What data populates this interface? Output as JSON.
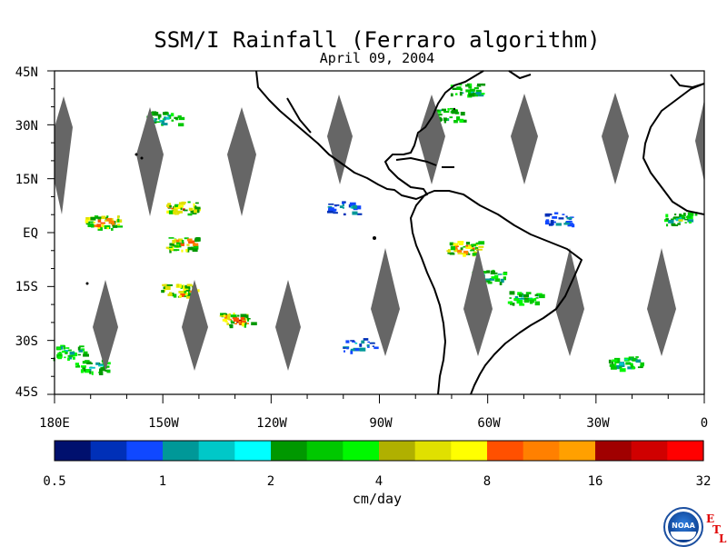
{
  "title": "SSM/I Rainfall (Ferraro algorithm)",
  "subtitle": "April 09, 2004",
  "map": {
    "lat_labels": [
      "45N",
      "30N",
      "15N",
      "EQ",
      "15S",
      "30S",
      "45S"
    ],
    "lat_values": [
      45,
      30,
      15,
      0,
      -15,
      -30,
      -45
    ],
    "lon_labels": [
      "180E",
      "150W",
      "120W",
      "90W",
      "60W",
      "30W",
      "0"
    ],
    "lon_values": [
      -180,
      -150,
      -120,
      -90,
      -60,
      -30,
      0
    ],
    "lon_range": [
      -180,
      0
    ],
    "lat_range": [
      -45,
      45
    ],
    "no_data_color": "#666666",
    "rain_blobs": [
      {
        "lon": -150,
        "lat": 32,
        "intensity": 2
      },
      {
        "lon": -145,
        "lat": 7,
        "intensity": 3
      },
      {
        "lon": -167,
        "lat": 3,
        "intensity": 3
      },
      {
        "lon": -145,
        "lat": -3,
        "intensity": 3
      },
      {
        "lon": -146,
        "lat": -16,
        "intensity": 3
      },
      {
        "lon": -130,
        "lat": -24,
        "intensity": 3
      },
      {
        "lon": -176,
        "lat": -33,
        "intensity": 2
      },
      {
        "lon": -170,
        "lat": -37,
        "intensity": 2
      },
      {
        "lon": -100,
        "lat": 7,
        "intensity": 1
      },
      {
        "lon": -96,
        "lat": -31,
        "intensity": 1
      },
      {
        "lon": -67,
        "lat": -4,
        "intensity": 3
      },
      {
        "lon": -60,
        "lat": -12,
        "intensity": 2
      },
      {
        "lon": -50,
        "lat": -18,
        "intensity": 2
      },
      {
        "lon": -40,
        "lat": 4,
        "intensity": 1
      },
      {
        "lon": -22,
        "lat": -36,
        "intensity": 2
      },
      {
        "lon": -7,
        "lat": 4,
        "intensity": 2
      },
      {
        "lon": -66,
        "lat": 40,
        "intensity": 2
      },
      {
        "lon": -72,
        "lat": 33,
        "intensity": 2
      }
    ]
  },
  "colorbar": {
    "ticks": [
      "0.5",
      "1",
      "2",
      "4",
      "8",
      "16",
      "32"
    ],
    "units": "cm/day",
    "colors": [
      "#00106e",
      "#0030b8",
      "#1048ff",
      "#009898",
      "#00c8c8",
      "#00ffff",
      "#009800",
      "#00c800",
      "#00f800",
      "#b0b000",
      "#e0e000",
      "#ffff00",
      "#ff5000",
      "#ff8000",
      "#ffa000",
      "#a00000",
      "#d00000",
      "#ff0000"
    ]
  },
  "logo": {
    "agency": "NOAA",
    "mark": [
      "E",
      "T",
      "L"
    ]
  }
}
